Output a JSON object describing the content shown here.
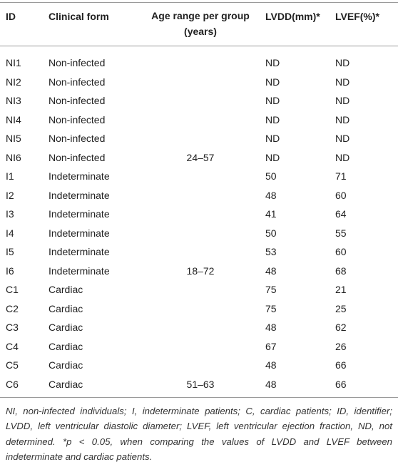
{
  "table": {
    "header": [
      "ID",
      "Clinical form",
      "Age range per group (years)",
      "LVDD(mm)*",
      "LVEF(%)*"
    ],
    "rows": [
      {
        "id": "NI1",
        "form": "Non-infected",
        "lvdd": "ND",
        "lvef": "ND"
      },
      {
        "id": "NI2",
        "form": "Non-infected",
        "lvdd": "ND",
        "lvef": "ND"
      },
      {
        "id": "NI3",
        "form": "Non-infected",
        "lvdd": "ND",
        "lvef": "ND"
      },
      {
        "id": "NI4",
        "form": "Non-infected",
        "lvdd": "ND",
        "lvef": "ND"
      },
      {
        "id": "NI5",
        "form": "Non-infected",
        "lvdd": "ND",
        "lvef": "ND"
      },
      {
        "id": "NI6",
        "form": "Non-infected",
        "age": "24–57",
        "lvdd": "ND",
        "lvef": "ND"
      },
      {
        "id": "I1",
        "form": "Indeterminate",
        "lvdd": 50,
        "lvef": 71
      },
      {
        "id": "I2",
        "form": "Indeterminate",
        "lvdd": 48,
        "lvef": 60
      },
      {
        "id": "I3",
        "form": "Indeterminate",
        "lvdd": 41,
        "lvef": 64
      },
      {
        "id": "I4",
        "form": "Indeterminate",
        "lvdd": 50,
        "lvef": 55
      },
      {
        "id": "I5",
        "form": "Indeterminate",
        "lvdd": 53,
        "lvef": 60
      },
      {
        "id": "I6",
        "form": "Indeterminate",
        "age": "18–72",
        "lvdd": 48,
        "lvef": 68
      },
      {
        "id": "C1",
        "form": "Cardiac",
        "lvdd": 75,
        "lvef": 21
      },
      {
        "id": "C2",
        "form": "Cardiac",
        "lvdd": 75,
        "lvef": 25
      },
      {
        "id": "C3",
        "form": "Cardiac",
        "lvdd": 48,
        "lvef": 62
      },
      {
        "id": "C4",
        "form": "Cardiac",
        "lvdd": 67,
        "lvef": 26
      },
      {
        "id": "C5",
        "form": "Cardiac",
        "lvdd": 48,
        "lvef": 66
      },
      {
        "id": "C6",
        "form": "Cardiac",
        "age": "51–63",
        "lvdd": 48,
        "lvef": 66
      }
    ],
    "footnote": "NI, non-infected individuals; I, indeterminate patients; C, cardiac patients; ID, identifier; LVDD, left ventricular diastolic diameter; LVEF, left ventricular ejection fraction, ND, not determined. *p < 0.05, when comparing the values of LVDD and LVEF between indeterminate and cardiac patients."
  }
}
